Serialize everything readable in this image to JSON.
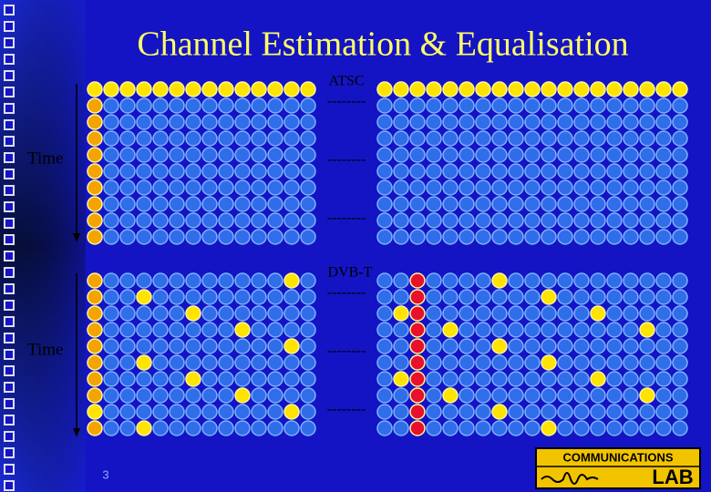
{
  "title": "Channel Estimation & Equalisation",
  "panels": [
    {
      "label": "ATSC",
      "time_label": "Time",
      "separators": [
        "--------",
        "--------",
        "--------"
      ]
    },
    {
      "label": "DVB-T",
      "time_label": "Time",
      "separators": [
        "--------",
        "--------",
        "--------"
      ]
    }
  ],
  "page_number": "3",
  "logo": {
    "top": "COMMUNICATIONS",
    "bottom": "LAB"
  }
}
